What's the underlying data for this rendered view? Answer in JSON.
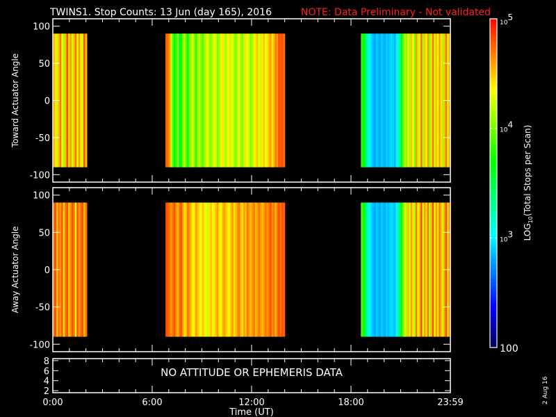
{
  "title": "TWINS1. Stop Counts: 13 Jun (day 165), 2016",
  "note": "NOTE: Data Preliminary - Not validated",
  "footer_date": "2 Aug 16",
  "colors": {
    "background": "#000000",
    "axes": "#ffffff",
    "note": "#ff2020"
  },
  "chart_data": [
    {
      "type": "heatmap",
      "ylabel": "Toward Actuator Angle",
      "ylim": [
        -110,
        110
      ],
      "yticks": [
        "100",
        "50",
        "0",
        "-50",
        "-100"
      ],
      "data_angle_range": [
        -90,
        90
      ],
      "xlim_hours": [
        0,
        24
      ],
      "segments": [
        {
          "start_h": 0.0,
          "end_h": 2.05,
          "log10_counts": [
            4.6,
            4.4,
            4.2,
            4.5,
            4.7,
            4.3,
            4.1,
            4.5,
            4.8,
            4.4,
            4.6,
            4.2,
            4.5,
            4.7,
            4.3,
            4.6,
            4.4,
            4.2,
            4.8,
            4.5
          ]
        },
        {
          "start_h": 6.8,
          "end_h": 14.0,
          "log10_counts": [
            4.75,
            4.7,
            4.6,
            4.2,
            3.9,
            3.6,
            3.8,
            4.1,
            3.5,
            3.7,
            4.0,
            4.2,
            3.9,
            3.6,
            4.0,
            4.1,
            4.3,
            4.0,
            3.8,
            4.1,
            4.2,
            4.0,
            3.9,
            4.1,
            4.2,
            4.3,
            4.1,
            4.0,
            4.2,
            4.3,
            4.2,
            4.0,
            4.1,
            4.3,
            4.4,
            4.2,
            4.1,
            4.3,
            4.4,
            4.2,
            4.3,
            4.1,
            4.0,
            4.2,
            4.3,
            4.1,
            4.0,
            4.2,
            4.4,
            4.3,
            4.2,
            4.0,
            4.1,
            4.3,
            4.4,
            4.5,
            4.3,
            4.2,
            4.4,
            4.5,
            4.3,
            4.4,
            4.5,
            4.6,
            4.4,
            4.5,
            4.7,
            4.6,
            4.8,
            4.75,
            4.8,
            4.7
          ]
        },
        {
          "start_h": 18.6,
          "end_h": 24.0,
          "log10_counts": [
            3.8,
            3.7,
            3.5,
            3.3,
            3.1,
            3.0,
            2.9,
            2.85,
            2.8,
            2.9,
            2.85,
            2.8,
            2.9,
            2.85,
            2.8,
            2.9,
            2.85,
            2.9,
            2.95,
            2.9,
            2.8,
            3.0,
            3.1,
            3.3,
            3.6,
            3.9,
            4.2,
            4.0,
            4.4,
            4.1,
            4.5,
            4.3,
            4.0,
            4.6,
            4.2,
            4.4,
            4.7,
            4.1,
            4.5,
            4.3,
            4.6,
            4.0,
            4.4,
            4.7,
            4.2,
            4.5,
            4.3,
            4.6,
            4.4,
            4.1,
            4.5,
            4.7,
            4.3,
            4.6
          ]
        }
      ]
    },
    {
      "type": "heatmap",
      "ylabel": "Away Actuator Angle",
      "ylim": [
        -110,
        110
      ],
      "yticks": [
        "100",
        "50",
        "0",
        "-50",
        "-100"
      ],
      "data_angle_range": [
        -90,
        90
      ],
      "xlim_hours": [
        0,
        24
      ],
      "segments": [
        {
          "start_h": 0.0,
          "end_h": 2.05,
          "log10_counts": [
            4.7,
            4.8,
            4.5,
            4.7,
            4.6,
            4.8,
            4.4,
            4.7,
            4.8,
            4.5,
            4.6,
            4.8,
            4.7,
            4.3,
            4.8,
            4.6,
            4.7,
            4.8,
            4.5,
            4.7
          ]
        },
        {
          "start_h": 6.8,
          "end_h": 14.0,
          "log10_counts": [
            4.8,
            4.75,
            4.7,
            4.6,
            4.7,
            4.8,
            4.6,
            4.5,
            4.7,
            4.8,
            4.6,
            4.4,
            4.5,
            4.7,
            4.6,
            4.5,
            4.3,
            4.4,
            4.6,
            4.5,
            4.4,
            4.3,
            4.5,
            4.4,
            4.3,
            4.2,
            4.4,
            4.5,
            4.3,
            4.4,
            4.5,
            4.6,
            4.4,
            4.3,
            4.5,
            4.6,
            4.5,
            4.4,
            4.3,
            4.5,
            4.6,
            4.4,
            4.5,
            4.6,
            4.7,
            4.5,
            4.4,
            4.6,
            4.5,
            4.7,
            4.6,
            4.5,
            4.6,
            4.7,
            4.5,
            4.6,
            4.7,
            4.6,
            4.5,
            4.6,
            4.7,
            4.6,
            4.7,
            4.8,
            4.6,
            4.7,
            4.5,
            4.7,
            4.8,
            4.7,
            4.8,
            4.75
          ]
        },
        {
          "start_h": 18.6,
          "end_h": 24.0,
          "log10_counts": [
            3.9,
            3.7,
            3.5,
            3.3,
            3.1,
            3.0,
            2.9,
            2.85,
            2.8,
            2.9,
            2.85,
            2.8,
            2.9,
            2.85,
            2.8,
            2.9,
            2.85,
            2.9,
            2.95,
            2.9,
            2.85,
            3.0,
            3.2,
            3.4,
            3.7,
            4.0,
            4.3,
            4.1,
            4.5,
            4.2,
            4.6,
            4.4,
            4.1,
            4.7,
            4.3,
            4.5,
            4.8,
            4.2,
            4.6,
            4.4,
            4.7,
            4.1,
            4.5,
            4.8,
            4.3,
            4.6,
            4.4,
            4.7,
            4.5,
            4.2,
            4.6,
            4.8,
            4.4,
            4.7
          ]
        }
      ]
    },
    {
      "type": "table",
      "yticks": [
        "8",
        "6",
        "4",
        "2"
      ],
      "message": "NO ATTITUDE OR EPHEMERIS DATA"
    }
  ],
  "xaxis": {
    "label": "Time (UT)",
    "ticks": [
      "0:00",
      "6:00",
      "12:00",
      "18:00",
      "23:59"
    ]
  },
  "colorbar": {
    "label": "LOG",
    "label_sub": "10",
    "label_rest": "(Total Stops per Scan)",
    "range_log10": [
      2,
      5
    ],
    "ticks": [
      {
        "base": "10",
        "exp": "5"
      },
      {
        "base": "10",
        "exp": "4"
      },
      {
        "base": "10",
        "exp": "3"
      },
      {
        "base": "100",
        "exp": ""
      }
    ]
  }
}
